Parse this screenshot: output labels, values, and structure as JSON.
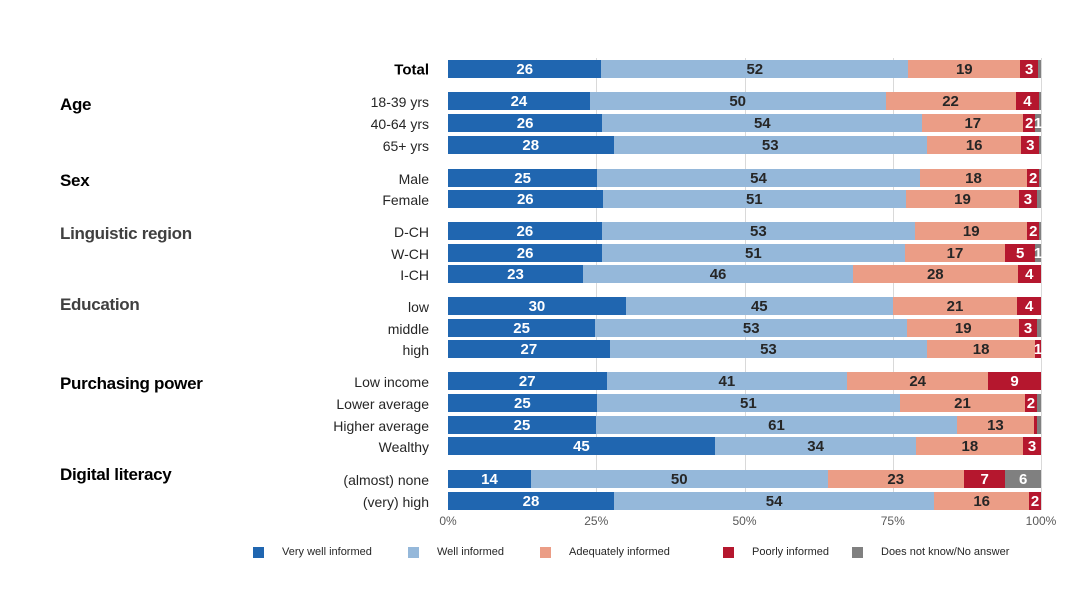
{
  "chart_data": {
    "type": "bar",
    "orientation": "horizontal-stacked-100",
    "xlim": [
      0,
      100
    ],
    "x_ticks": [
      "0%",
      "25%",
      "50%",
      "75%",
      "100%"
    ],
    "grid": true,
    "legend_placement": "bottom",
    "series": [
      {
        "name": "Very well informed",
        "color": "#2066b0",
        "label_color": "#ffffff"
      },
      {
        "name": "Well informed",
        "color": "#95b8da",
        "label_color": "#262626"
      },
      {
        "name": "Adequately informed",
        "color": "#eb9d86",
        "label_color": "#262626"
      },
      {
        "name": "Poorly informed",
        "color": "#b5172e",
        "label_color": "#ffffff"
      },
      {
        "name": "Does not know/No answer",
        "color": "#808080",
        "label_color": "#ffffff"
      }
    ],
    "groups": [
      {
        "name": "",
        "rows": [
          {
            "label": "Total",
            "values": [
              26,
              52,
              19,
              3,
              0.5
            ]
          }
        ]
      },
      {
        "name": "Age",
        "rows": [
          {
            "label": "18-39 yrs",
            "values": [
              24,
              50,
              22,
              4,
              0.3
            ]
          },
          {
            "label": "40-64 yrs",
            "values": [
              26,
              54,
              17,
              2,
              1
            ]
          },
          {
            "label": "65+ yrs",
            "values": [
              28,
              53,
              16,
              3,
              0.3
            ]
          }
        ]
      },
      {
        "name": "Sex",
        "rows": [
          {
            "label": "Male",
            "values": [
              25,
              54,
              18,
              2,
              0.3
            ]
          },
          {
            "label": "Female",
            "values": [
              26,
              51,
              19,
              3,
              0.7
            ]
          }
        ]
      },
      {
        "name": "Linguistic region",
        "rows": [
          {
            "label": "D-CH",
            "values": [
              26,
              53,
              19,
              2,
              0.3
            ]
          },
          {
            "label": "W-CH",
            "values": [
              26,
              51,
              17,
              5,
              1
            ]
          },
          {
            "label": "I-CH",
            "values": [
              23,
              46,
              28,
              4,
              0
            ]
          }
        ]
      },
      {
        "name": "Education",
        "rows": [
          {
            "label": "low",
            "values": [
              30,
              45,
              21,
              4,
              0
            ]
          },
          {
            "label": "middle",
            "values": [
              25,
              53,
              19,
              3,
              0.7
            ]
          },
          {
            "label": "high",
            "values": [
              27,
              53,
              18,
              1,
              0
            ]
          }
        ]
      },
      {
        "name": "Purchasing power",
        "rows": [
          {
            "label": "Low income",
            "values": [
              27,
              41,
              24,
              9,
              0
            ]
          },
          {
            "label": "Lower average",
            "values": [
              25,
              51,
              21,
              2,
              0.7
            ]
          },
          {
            "label": "Higher average",
            "values": [
              25,
              61,
              13,
              0.5,
              0.7
            ]
          },
          {
            "label": "Wealthy",
            "values": [
              45,
              34,
              18,
              3,
              0
            ]
          }
        ]
      },
      {
        "name": "Digital literacy",
        "rows": [
          {
            "label": "(almost) none",
            "values": [
              14,
              50,
              23,
              7,
              6
            ]
          },
          {
            "label": "(very) high",
            "values": [
              28,
              54,
              16,
              2,
              0
            ]
          }
        ]
      }
    ]
  }
}
